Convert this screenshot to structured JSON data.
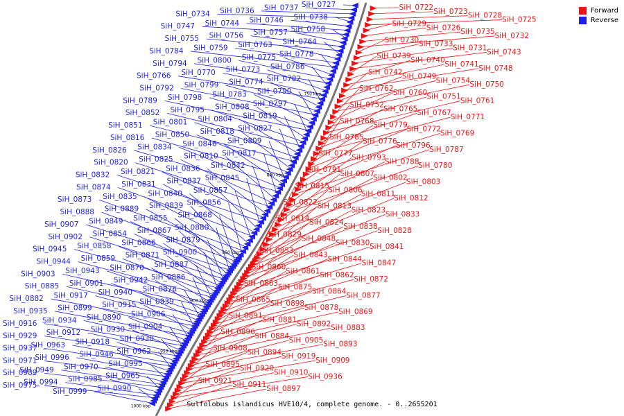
{
  "caption": "Sulfolobus islandicus HVE10/4, complete genome. - 0..2655201",
  "legend": {
    "forward": {
      "label": "Forward",
      "color": "#ee1111"
    },
    "reverse": {
      "label": "Reverse",
      "color": "#1f1fe8"
    }
  },
  "colors": {
    "forward": "#ee1111",
    "reverse": "#1f1fe8",
    "backbone": "#777777",
    "text": "#000000"
  },
  "tick_labels": [
    "750 kbp",
    "800 kbp",
    "850 kbp",
    "900 kbp",
    "950 kbp",
    "1000 kbp"
  ],
  "reverse_labels": [
    "SiH_0727",
    "SiH_0737",
    "SiH_0736",
    "SiH_0734",
    "SiH_0738",
    "SiH_0746",
    "SiH_0744",
    "SiH_0747",
    "SiH_0758",
    "SiH_0757",
    "SiH_0756",
    "SiH_0755",
    "SiH_0764",
    "SiH_0763",
    "SiH_0759",
    "SiH_0784",
    "SiH_0778",
    "SiH_0775",
    "SiH_0800",
    "SiH_0794",
    "SiH_0786",
    "SiH_0773",
    "SiH_0770",
    "SiH_0766",
    "SiH_0782",
    "SiH_0774",
    "SiH_0799",
    "SiH_0792",
    "SiH_0790",
    "SiH_0783",
    "SiH_0798",
    "SiH_0789",
    "SiH_0797",
    "SiH_0808",
    "SiH_0795",
    "SiH_0852",
    "SiH_0819",
    "SiH_0804",
    "SiH_0801",
    "SiH_0851",
    "SiH_0827",
    "SiH_0818",
    "SiH_0850",
    "SiH_0816",
    "SiH_0809",
    "SiH_0846",
    "SiH_0834",
    "SiH_0826",
    "SiH_0817",
    "SiH_0810",
    "SiH_0825",
    "SiH_0820",
    "SiH_0842",
    "SiH_0836",
    "SiH_0821",
    "SiH_0832",
    "SiH_0845",
    "SiH_0837",
    "SiH_0831",
    "SiH_0874",
    "SiH_0857",
    "SiH_0840",
    "SiH_0835",
    "SiH_0873",
    "SiH_0856",
    "SiH_0839",
    "SiH_0889",
    "SiH_0888",
    "SiH_0868",
    "SiH_0855",
    "SiH_0849",
    "SiH_0907",
    "SiH_0880",
    "SiH_0867",
    "SiH_0854",
    "SiH_0902",
    "SiH_0879",
    "SiH_0866",
    "SiH_0858",
    "SiH_0945",
    "SiH_0900",
    "SiH_0871",
    "SiH_0859",
    "SiH_0944",
    "SiH_0887",
    "SiH_0870",
    "SiH_0943",
    "SiH_0903",
    "SiH_0886",
    "SiH_0942",
    "SiH_0901",
    "SiH_0885",
    "SiH_0876",
    "SiH_0940",
    "SiH_0917",
    "SiH_0882",
    "SiH_0939",
    "SiH_0915",
    "SiH_0899",
    "SiH_0935",
    "SiH_0906",
    "SiH_0890",
    "SiH_0934",
    "SiH_0916",
    "SiH_0904",
    "SiH_0930",
    "SiH_0912",
    "SiH_0929",
    "SiH_0938",
    "SiH_0918",
    "SiH_0963",
    "SiH_0937",
    "SiH_0962",
    "SiH_0946",
    "SiH_0996",
    "SiH_0971",
    "SiH_0995",
    "SiH_0970",
    "SiH_0949",
    "SiH_0989",
    "SiH_0965",
    "SiH_0985",
    "SiH_0994",
    "SiH_0975",
    "SiH_0990",
    "SiH_0999"
  ],
  "forward_labels": [
    "SiH_0722",
    "SiH_0723",
    "SiH_0728",
    "SiH_0725",
    "SiH_0729",
    "SiH_0726",
    "SiH_0735",
    "SiH_0732",
    "SiH_0730",
    "SiH_0733",
    "SiH_0731",
    "SiH_0743",
    "SiH_0739",
    "SiH_0740",
    "SiH_0741",
    "SiH_0748",
    "SiH_0742",
    "SiH_0749",
    "SiH_0754",
    "SiH_0750",
    "SiH_0762",
    "SiH_0760",
    "SiH_0751",
    "SiH_0761",
    "SiH_0752",
    "SiH_0765",
    "SiH_0767",
    "SiH_0771",
    "SiH_0768",
    "SiH_0779",
    "SiH_0772",
    "SiH_0769",
    "SiH_0785",
    "SiH_0776",
    "SiH_0796",
    "SiH_0787",
    "SiH_0777",
    "SiH_0793",
    "SiH_0788",
    "SiH_0780",
    "SiH_0791",
    "SiH_0807",
    "SiH_0802",
    "SiH_0803",
    "SiH_0815",
    "SiH_0806",
    "SiH_0811",
    "SiH_0812",
    "SiH_0822",
    "SiH_0813",
    "SiH_0823",
    "SiH_0833",
    "SiH_0814",
    "SiH_0824",
    "SiH_0838",
    "SiH_0828",
    "SiH_0829",
    "SiH_0848",
    "SiH_0830",
    "SiH_0841",
    "SiH_0853",
    "SiH_0843",
    "SiH_0844",
    "SiH_0847",
    "SiH_0860",
    "SiH_0861",
    "SiH_0862",
    "SiH_0872",
    "SiH_0863",
    "SiH_0875",
    "SiH_0864",
    "SiH_0877",
    "SiH_0865",
    "SiH_0898",
    "SiH_0878",
    "SiH_0869",
    "SiH_0891",
    "SiH_0881",
    "SiH_0892",
    "SiH_0883",
    "SiH_0896",
    "SiH_0884",
    "SiH_0905",
    "SiH_0893",
    "SiH_0908",
    "SiH_0894",
    "SiH_0919",
    "SiH_0909",
    "SiH_0895",
    "SiH_0920",
    "SiH_0910",
    "SiH_0936",
    "SiH_0921",
    "SiH_0911",
    "SiH_0897"
  ]
}
